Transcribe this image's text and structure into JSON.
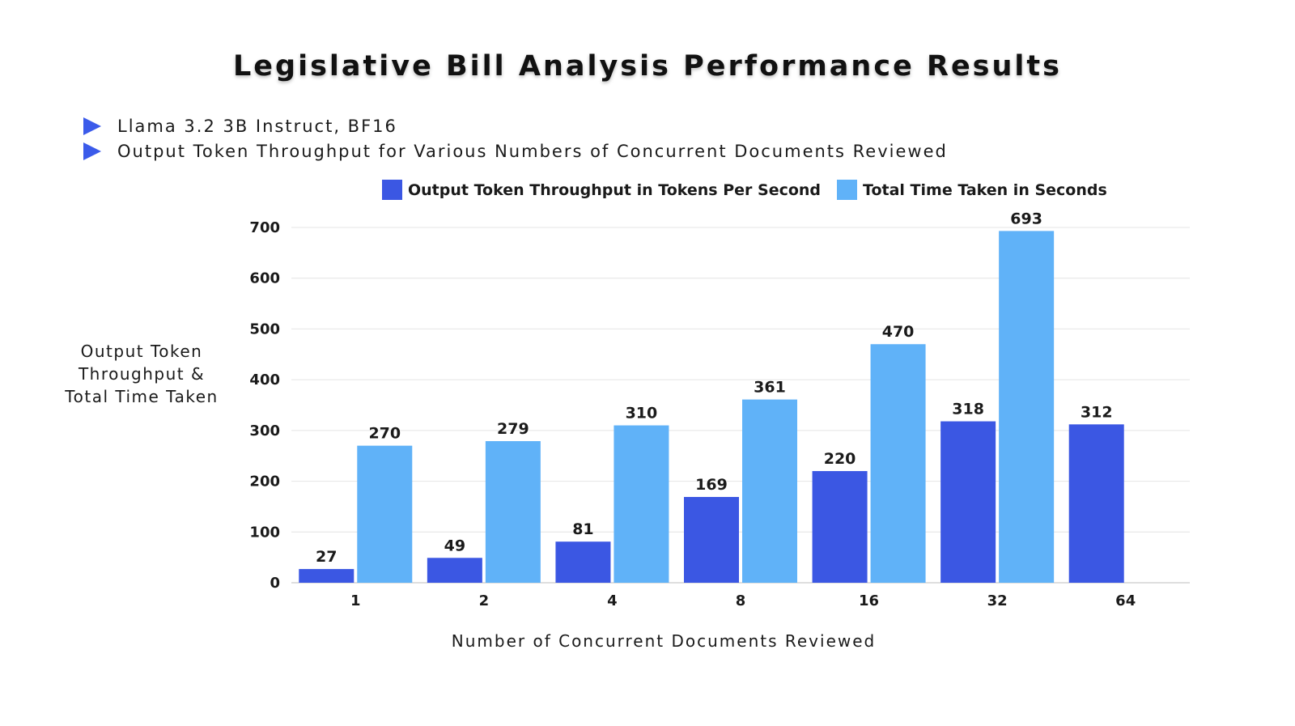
{
  "title": "Legislative Bill Analysis Performance Results",
  "bullets": [
    "Llama 3.2 3B Instruct, BF16",
    "Output Token Throughput for Various Numbers of Concurrent Documents Reviewed"
  ],
  "bullet_icon": "triangle-right-icon",
  "colors": {
    "throughput": "#3b57e3",
    "time": "#60b2f8",
    "bullet": "#3b5bea",
    "grid": "#e4e4e4"
  },
  "chart_data": {
    "type": "bar",
    "title": "Legislative Bill Analysis Performance Results",
    "xlabel": "Number of Concurrent Documents Reviewed",
    "ylabel": "Output Token Throughput & Total Time Taken",
    "categories": [
      "1",
      "2",
      "4",
      "8",
      "16",
      "32",
      "64"
    ],
    "series": [
      {
        "name": "Output Token Throughput in Tokens Per Second",
        "values": [
          27,
          49,
          81,
          169,
          220,
          318,
          312
        ]
      },
      {
        "name": "Total Time Taken in Seconds",
        "values": [
          270,
          279,
          310,
          361,
          470,
          693,
          null
        ]
      }
    ],
    "ylim": [
      0,
      700
    ],
    "yticks": [
      0,
      100,
      200,
      300,
      400,
      500,
      600,
      700
    ],
    "grid": true,
    "legend_position": "top"
  }
}
